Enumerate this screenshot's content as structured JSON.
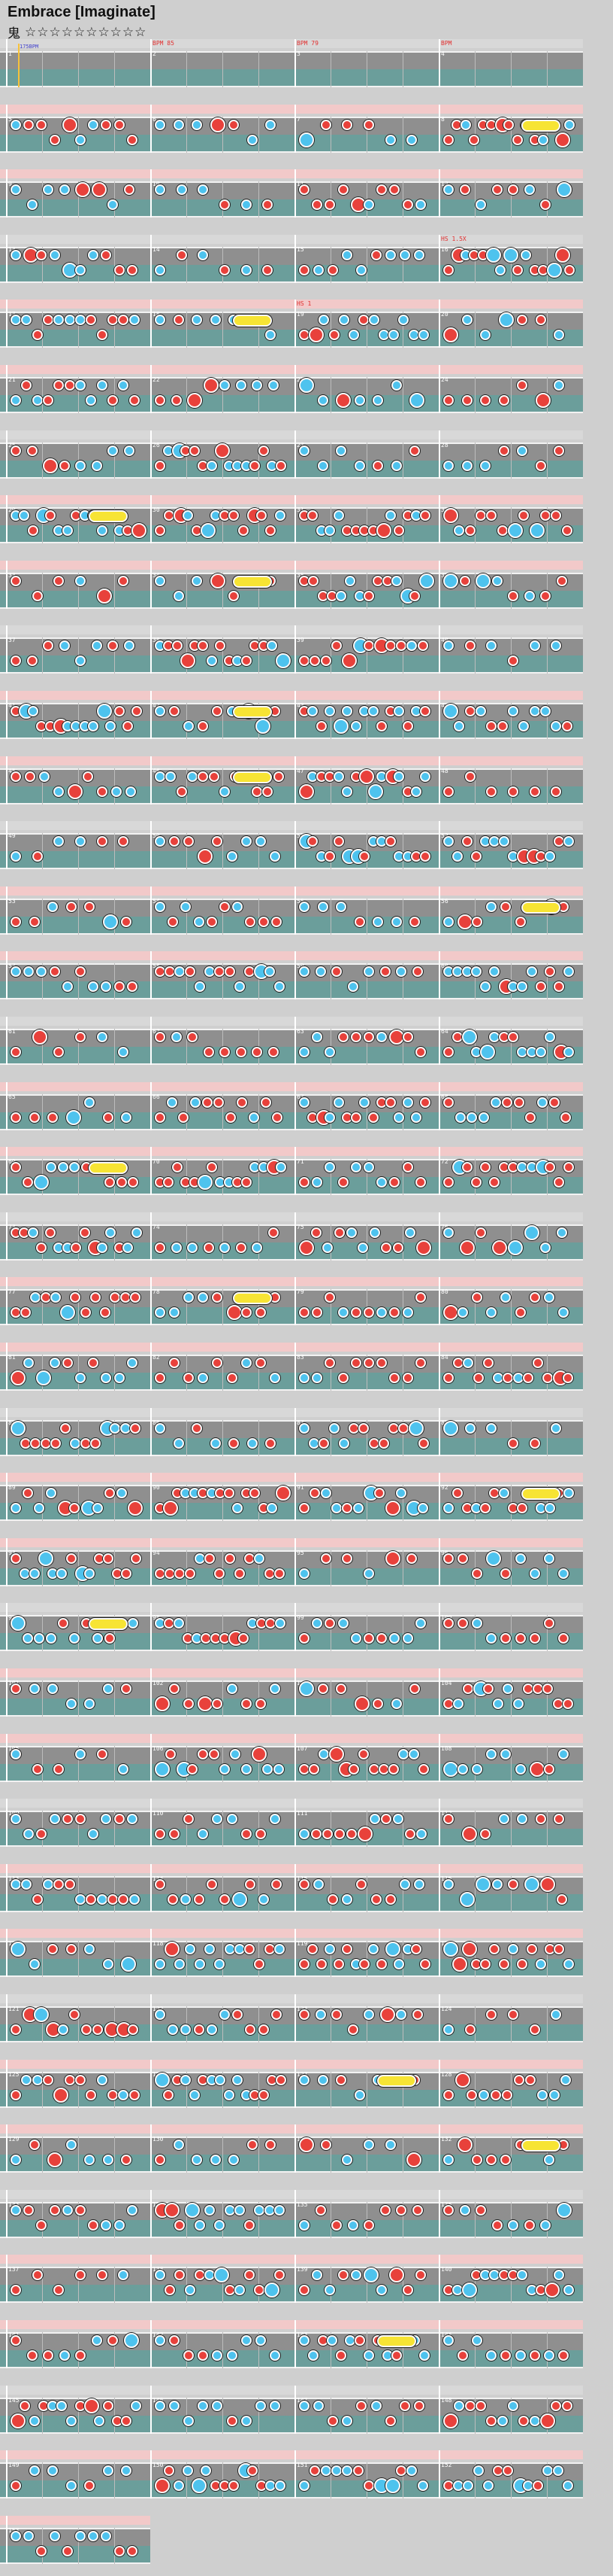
{
  "header": {
    "title": "Embrace [Imaginate]",
    "difficulty_label": "鬼",
    "stars": "☆☆☆☆☆☆☆☆☆☆"
  },
  "colors": {
    "background": "#cfcfcf",
    "lane": "#8f8f8f",
    "lane_tint": "#5fa39f",
    "control_band": "#f2c9c9",
    "don": "#e8413b",
    "ka": "#4ec3ee",
    "roll": "#f7e434",
    "event_text": "#e23030"
  },
  "chart": {
    "rows": 39,
    "measures_per_row": 4,
    "start_marker": "175BPM",
    "bpm_markers": [
      {
        "measure": 2,
        "label": "BPM 85"
      },
      {
        "measure": 3,
        "label": "BPM 79"
      },
      {
        "measure": 4,
        "label": "BPM"
      },
      {
        "measure": 16,
        "label": "HS 1.5X"
      },
      {
        "measure": 19,
        "label": "HS 1"
      }
    ]
  }
}
